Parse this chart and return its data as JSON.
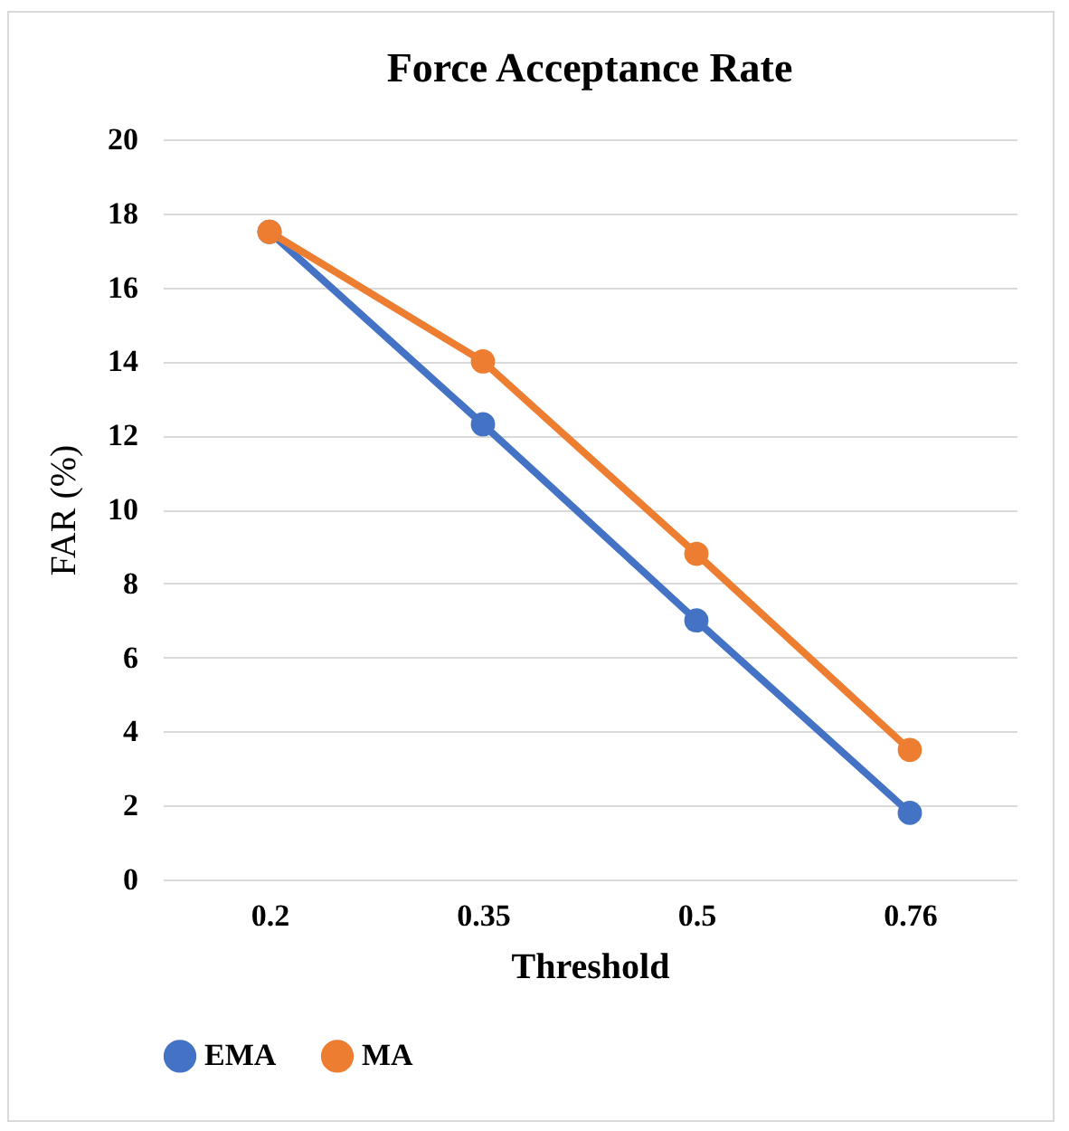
{
  "chart_data": {
    "type": "line",
    "title": "Force Acceptance Rate",
    "xlabel": "Threshold",
    "ylabel": "FAR (%)",
    "categories": [
      "0.2",
      "0.35",
      "0.5",
      "0.76"
    ],
    "series": [
      {
        "name": "EMA",
        "color": "#4472c4",
        "values": [
          17.5,
          12.3,
          7.0,
          1.8
        ]
      },
      {
        "name": "MA",
        "color": "#ed7d31",
        "values": [
          17.5,
          14.0,
          8.8,
          3.5
        ]
      }
    ],
    "ylim": [
      0,
      20
    ],
    "yticks": [
      0,
      2,
      4,
      6,
      8,
      10,
      12,
      14,
      16,
      18,
      20
    ],
    "grid": "y",
    "legend": "bottom",
    "marker": "circle",
    "line_style": "solid"
  }
}
